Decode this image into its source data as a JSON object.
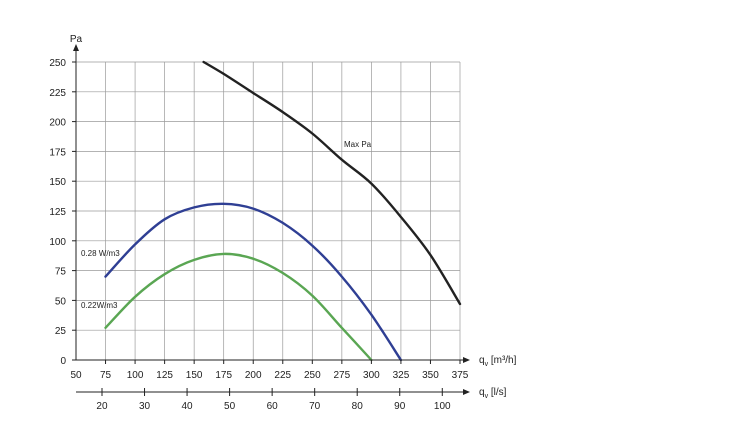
{
  "chart_data": {
    "type": "line",
    "y_unit_label": "Pa",
    "x_unit_label": "q",
    "x_unit_sub": "v",
    "x_unit_suffix": " [m³/h]",
    "x2_unit_label": "q",
    "x2_unit_sub": "v",
    "x2_unit_suffix": " [l/s]",
    "xlim": [
      50,
      375
    ],
    "ylim": [
      0,
      250
    ],
    "grid": true,
    "x_ticks": [
      50,
      75,
      100,
      125,
      150,
      175,
      200,
      225,
      250,
      275,
      300,
      325,
      350,
      375
    ],
    "y_ticks": [
      0,
      25,
      50,
      75,
      100,
      125,
      150,
      175,
      200,
      225,
      250
    ],
    "x2_ticks": [
      20,
      30,
      40,
      50,
      60,
      70,
      80,
      90,
      100
    ],
    "x2_factor_m3h_per_ls": 3.6,
    "series": [
      {
        "name": "Max Pa",
        "color": "#222222",
        "x": [
          158,
          175,
          200,
          225,
          250,
          275,
          300,
          325,
          350,
          375
        ],
        "y": [
          250,
          240,
          224,
          208,
          190,
          168,
          148,
          120,
          88,
          47
        ]
      },
      {
        "name": "0.28 W/m3",
        "color": "#2f3f94",
        "x": [
          75,
          100,
          125,
          150,
          175,
          200,
          225,
          250,
          275,
          300,
          325
        ],
        "y": [
          70,
          97,
          118,
          128,
          131,
          127,
          115,
          96,
          70,
          38,
          0
        ]
      },
      {
        "name": "0.22W/m3",
        "color": "#5aa653",
        "x": [
          75,
          100,
          125,
          150,
          175,
          200,
          225,
          250,
          275,
          300
        ],
        "y": [
          27,
          53,
          72,
          84,
          89,
          85,
          73,
          54,
          27,
          0
        ]
      }
    ]
  }
}
